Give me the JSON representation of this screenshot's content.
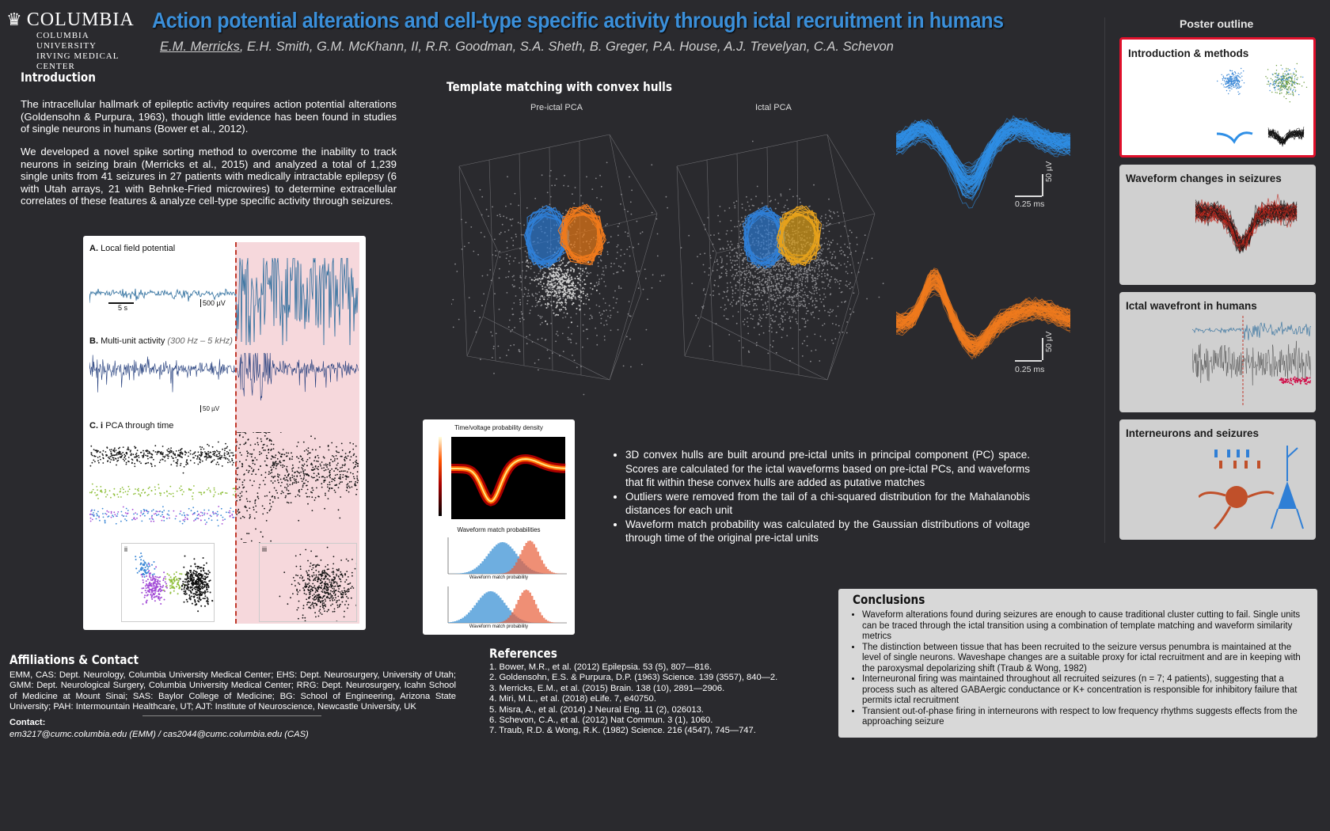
{
  "header": {
    "logo_name": "COLUMBIA",
    "logo_sub1": "COLUMBIA UNIVERSITY",
    "logo_sub2": "IRVING MEDICAL CENTER",
    "title": "Action potential alterations and cell-type specific activity through ictal recruitment in humans",
    "lead_author": "E.M. Merricks",
    "authors_rest": ", E.H. Smith, G.M. McKhann, II, R.R. Goodman, S.A. Sheth, B. Greger, P.A. House, A.J. Trevelyan, C.A. Schevon"
  },
  "introduction": {
    "heading": "Introduction",
    "p1": "The intracellular hallmark of epileptic activity requires action potential alterations (Goldensohn & Purpura, 1963), though little evidence has been found in studies of single neurons in humans (Bower et al., 2012).",
    "p2": "We developed a novel spike sorting method to overcome the inability to track neurons in seizing brain (Merricks et al., 2015) and analyzed a total of 1,239 single units from 41 seizures in 27 patients with medically intractable epilepsy (6 with Utah arrays, 21 with Behnke-Fried microwires) to determine extracellular correlates of these features & analyze cell-type specific activity through seizures."
  },
  "figure_left": {
    "panel_a": "Local field potential",
    "panel_a_letter": "A.",
    "scale_time": "5 s",
    "scale_v1": "500 µV",
    "panel_b_letter": "B.",
    "panel_b": "Multi-unit activity",
    "panel_b_band": "(300 Hz – 5 kHz)",
    "scale_v2": "50 µV",
    "panel_c_letter": "C. i",
    "panel_c": "PCA through time",
    "sub_ii": "ii",
    "sub_iii": "iii"
  },
  "template_matching": {
    "heading": "Template matching with convex hulls",
    "pca_pre": "Pre-ictal PCA",
    "pca_ictal": "Ictal PCA",
    "scale_v": "50 µV",
    "scale_t": "0.25 ms",
    "bullets": [
      "3D convex hulls are built around pre-ictal units in principal component (PC) space. Scores are calculated for the ictal waveforms based on pre-ictal PCs, and waveforms that fit within these convex hulls are added as putative matches",
      "Outliers were removed from the tail of a chi-squared distribution for the Mahalanobis distances for each unit",
      "Waveform match probability was calculated by the Gaussian distributions of voltage through time of the original pre-ictal units"
    ]
  },
  "prob_figure": {
    "title1": "Time/voltage probability density",
    "title2": "Waveform match probabilities",
    "xlabel": "Waveform match probability"
  },
  "conclusions": {
    "heading": "Conclusions",
    "items": [
      "Waveform alterations found during seizures are enough to cause traditional cluster cutting to fail. Single units can be traced through the ictal transition using a combination of template matching and waveform similarity metrics",
      "The distinction between tissue that has been recruited to the seizure versus penumbra is maintained at the level of single neurons. Waveshape changes are a suitable proxy for ictal recruitment and are in keeping with the paroxysmal depolarizing shift (Traub & Wong, 1982)",
      "Interneuronal firing was maintained throughout all recruited seizures (n = 7; 4 patients), suggesting that a process such as altered GABAergic conductance or K+ concentration is responsible for inhibitory failure that permits ictal recruitment",
      "Transient out-of-phase firing in interneurons with respect to low frequency rhythms suggests effects from the approaching seizure"
    ]
  },
  "affiliations": {
    "heading": "Affiliations & Contact",
    "text": "EMM, CAS: Dept. Neurology, Columbia University Medical Center; EHS: Dept. Neurosurgery, University of Utah; GMM: Dept. Neurological Surgery, Columbia University Medical Center; RRG: Dept. Neurosurgery, Icahn School of Medicine at Mount Sinai; SAS: Baylor College of Medicine; BG: School of Engineering, Arizona State University; PAH: Intermountain Healthcare, UT; AJT: Institute of Neuroscience, Newcastle University, UK",
    "contact_label": "Contact:",
    "contact_line": "em3217@cumc.columbia.edu (EMM) / cas2044@cumc.columbia.edu (CAS)"
  },
  "references": {
    "heading": "References",
    "items": [
      "1.  Bower, M.R., et al. (2012) Epilepsia. 53 (5), 807—816.",
      "2.  Goldensohn, E.S. & Purpura, D.P. (1963) Science. 139 (3557), 840—2.",
      "3.  Merricks, E.M., et al. (2015) Brain. 138 (10), 2891—2906.",
      "4.  Miri, M.L., et al. (2018) eLife. 7, e40750.",
      "5.  Misra, A., et al. (2014) J Neural Eng. 11 (2), 026013.",
      "6.  Schevon, C.A., et al. (2012) Nat Commun. 3 (1), 1060.",
      "7.  Traub, R.D. & Wong, R.K. (1982) Science. 216 (4547), 745—747."
    ]
  },
  "outline": {
    "title": "Poster outline",
    "cards": [
      {
        "label": "Introduction & methods",
        "active": true
      },
      {
        "label": "Waveform changes in seizures",
        "active": false
      },
      {
        "label": "Ictal wavefront in humans",
        "active": false
      },
      {
        "label": "Interneurons and seizures",
        "active": false
      }
    ]
  },
  "colors": {
    "title_blue": "#3b8fd9",
    "unit_blue": "#2f7fd6",
    "unit_orange": "#f07a1e",
    "outline_active_border": "#e0102b"
  }
}
